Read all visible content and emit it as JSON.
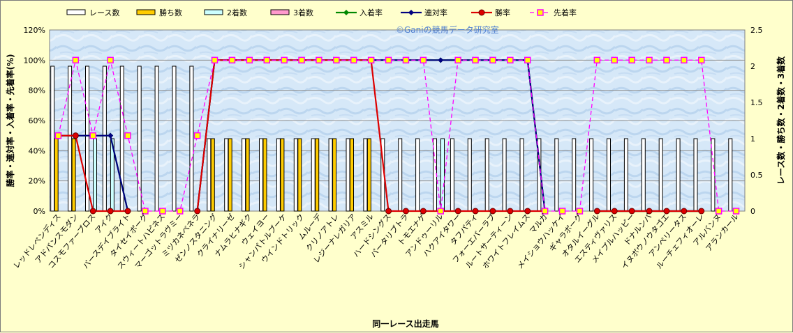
{
  "chart_data": {
    "type": "bar",
    "watermark": "©Ganiの競馬データ研究室",
    "xlabel": "同一レース出走馬",
    "ylabel_left": "勝率・連対率・入着率・先着率(%)",
    "ylabel_right": "レース数・勝ち数・2着数・3着数",
    "ylim_left": [
      0,
      120
    ],
    "ylim_right": [
      0,
      2.5
    ],
    "left_ticks": [
      "0%",
      "20%",
      "40%",
      "60%",
      "80%",
      "100%",
      "120%"
    ],
    "right_ticks": [
      "0",
      "0.5",
      "1",
      "1.5",
      "2",
      "2.5"
    ],
    "grid": true,
    "legend_position": "top",
    "categories": [
      "レッドレベンディス",
      "アドバンスモダン",
      "コスモファーブロス",
      "アイク",
      "バースデイブライト",
      "タイセイボーグ",
      "スウィートハピネス",
      "マーゴットラヴミー",
      "ミツカネベネラ",
      "ゼンノスタニング",
      "クライナリーゼ",
      "ナムラヒナギク",
      "ウェイヨー",
      "シャンパトルブーケ",
      "ウインドトリック",
      "ムルーデ",
      "クリノアトレ",
      "レジーナレガリア",
      "アスミル",
      "ハードシングス",
      "パータリブトラ",
      "トモエナゲ",
      "アンドゥーリル",
      "ハクアイタワー",
      "タフパティ",
      "フォーエバーラブ",
      "ルートサーティーン",
      "ホワイトフレイムス",
      "マルガ",
      "メイショウハッケイ",
      "ギャラボーグ",
      "オタルイーグル",
      "エスティヴァリス",
      "メイプルハッピー",
      "ドナルンバ",
      "イヌボウノウタゴエ",
      "アンペリータス",
      "ルーチェフィオーレ",
      "アルバンヌ",
      "アランカール"
    ],
    "series": [
      {
        "name": "レース数",
        "kind": "bar",
        "axis": "right",
        "color": "#ffffff",
        "values": [
          2,
          2,
          2,
          2,
          2,
          2,
          2,
          2,
          2,
          1,
          1,
          1,
          1,
          1,
          1,
          1,
          1,
          1,
          1,
          1,
          1,
          1,
          1,
          1,
          1,
          1,
          1,
          1,
          1,
          1,
          1,
          1,
          1,
          1,
          1,
          1,
          1,
          1,
          1,
          1
        ]
      },
      {
        "name": "勝ち数",
        "kind": "bar",
        "axis": "right",
        "color": "#ffcc00",
        "values": [
          1,
          1,
          0,
          0,
          0,
          0,
          0,
          0,
          0,
          1,
          1,
          1,
          1,
          1,
          1,
          1,
          1,
          1,
          1,
          0,
          0,
          0,
          0,
          0,
          0,
          0,
          0,
          0,
          0,
          0,
          0,
          0,
          0,
          0,
          0,
          0,
          0,
          0,
          0,
          0
        ]
      },
      {
        "name": "2着数",
        "kind": "bar",
        "axis": "right",
        "color": "#ccffff",
        "values": [
          0,
          0,
          1,
          1,
          0,
          0,
          0,
          0,
          0,
          0,
          0,
          0,
          0,
          0,
          0,
          0,
          0,
          0,
          0,
          0,
          0,
          0,
          1,
          0,
          0,
          0,
          0,
          0,
          0,
          0,
          0,
          0,
          0,
          0,
          0,
          0,
          0,
          0,
          0,
          0
        ]
      },
      {
        "name": "3着数",
        "kind": "bar",
        "axis": "right",
        "color": "#ff99cc",
        "values": [
          0,
          0,
          0,
          0,
          0,
          0,
          0,
          0,
          0,
          0,
          0,
          0,
          0,
          0,
          0,
          0,
          0,
          0,
          0,
          0,
          0,
          0,
          0,
          0,
          0,
          0,
          0,
          0,
          0,
          0,
          0,
          0,
          0,
          0,
          0,
          0,
          0,
          0,
          0,
          0
        ]
      },
      {
        "name": "入着率",
        "kind": "line",
        "axis": "left",
        "color": "#008800",
        "marker": "diamond",
        "values": [
          50,
          50,
          50,
          50,
          0,
          null,
          null,
          null,
          0,
          100,
          100,
          100,
          100,
          100,
          100,
          100,
          100,
          100,
          100,
          100,
          100,
          100,
          100,
          100,
          100,
          100,
          100,
          100,
          0,
          null,
          null,
          0,
          0,
          0,
          0,
          0,
          0,
          0,
          null,
          null
        ]
      },
      {
        "name": "連対率",
        "kind": "line",
        "axis": "left",
        "color": "#000080",
        "marker": "diamond",
        "values": [
          50,
          50,
          50,
          50,
          0,
          null,
          null,
          null,
          0,
          100,
          100,
          100,
          100,
          100,
          100,
          100,
          100,
          100,
          100,
          100,
          100,
          100,
          100,
          100,
          100,
          100,
          100,
          100,
          0,
          null,
          null,
          0,
          0,
          0,
          0,
          0,
          0,
          0,
          null,
          null
        ]
      },
      {
        "name": "勝率",
        "kind": "line",
        "axis": "left",
        "color": "#dd0000",
        "marker": "circle",
        "values": [
          50,
          50,
          0,
          0,
          0,
          null,
          null,
          null,
          0,
          100,
          100,
          100,
          100,
          100,
          100,
          100,
          100,
          100,
          100,
          0,
          0,
          0,
          0,
          0,
          0,
          0,
          0,
          0,
          0,
          null,
          null,
          0,
          0,
          0,
          0,
          0,
          0,
          0,
          null,
          null
        ]
      },
      {
        "name": "先着率",
        "kind": "dashed",
        "axis": "left",
        "color": "#ff00ff",
        "marker": "square",
        "values": [
          50,
          100,
          50,
          100,
          50,
          0,
          0,
          0,
          50,
          100,
          100,
          100,
          100,
          100,
          100,
          100,
          100,
          100,
          100,
          100,
          100,
          100,
          0,
          100,
          100,
          100,
          100,
          100,
          0,
          0,
          0,
          100,
          100,
          100,
          100,
          100,
          100,
          100,
          0,
          0
        ]
      }
    ]
  }
}
